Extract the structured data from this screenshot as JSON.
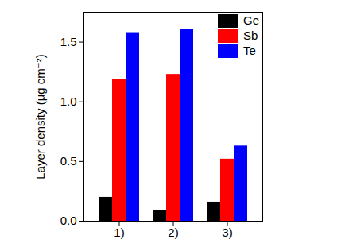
{
  "chart_data": {
    "type": "bar",
    "y_label": "Layer density (µg cm⁻²)",
    "categories": [
      "1)",
      "2)",
      "3)"
    ],
    "series": [
      {
        "name": "Ge",
        "color": "#000000",
        "values": [
          0.2,
          0.09,
          0.16
        ]
      },
      {
        "name": "Sb",
        "color": "#ff0000",
        "values": [
          1.19,
          1.23,
          0.52
        ]
      },
      {
        "name": "Te",
        "color": "#0000ff",
        "values": [
          1.58,
          1.61,
          0.63
        ]
      }
    ],
    "ylim": [
      0,
      1.75
    ],
    "yticks": [
      {
        "value": 0,
        "label": "0.0"
      },
      {
        "value": 0.5,
        "label": "0.5"
      },
      {
        "value": 1,
        "label": "1.0"
      },
      {
        "value": 1.5,
        "label": "1.5"
      }
    ],
    "legend": "top-right"
  }
}
